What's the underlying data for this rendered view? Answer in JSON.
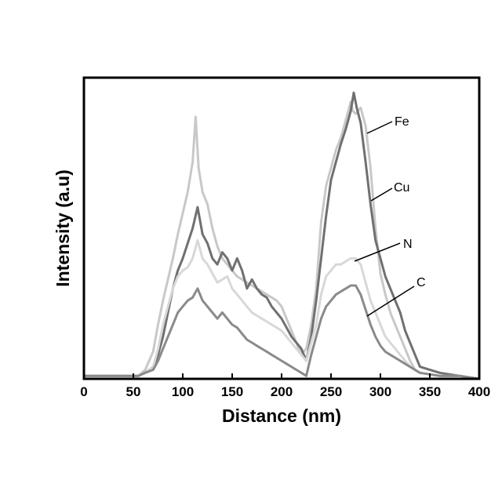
{
  "chart_data": {
    "type": "line",
    "title": "",
    "xlabel": "Distance (nm)",
    "ylabel": "Intensity (a.u)",
    "xlim": [
      0,
      400
    ],
    "ylim": [
      0,
      100
    ],
    "xticks": [
      0,
      50,
      100,
      150,
      200,
      250,
      300,
      350,
      400
    ],
    "grid": false,
    "legend": "none",
    "annotations": [
      "Fe",
      "Cu",
      "N",
      "C"
    ],
    "series": [
      {
        "color": "#c8c8c8",
        "x": [
          0,
          20,
          40,
          55,
          62,
          70,
          75,
          80,
          85,
          90,
          95,
          100,
          105,
          110,
          113,
          116,
          120,
          125,
          130,
          135,
          140,
          145,
          150,
          155,
          160,
          165,
          170,
          175,
          180,
          185,
          190,
          195,
          200,
          205,
          210,
          215,
          220,
          225,
          230,
          235,
          240,
          245,
          250,
          255,
          260,
          265,
          270,
          272,
          275,
          280,
          285,
          290,
          295,
          300,
          305,
          310,
          315,
          320,
          325,
          330,
          335,
          340,
          360,
          380,
          400
        ],
        "y": [
          1,
          1,
          1,
          1,
          3,
          9,
          18,
          26,
          33,
          40,
          48,
          55,
          62,
          72,
          87,
          70,
          62,
          58,
          50,
          44,
          40,
          38,
          36,
          34,
          33,
          32,
          31,
          30,
          29,
          28,
          27,
          26,
          24,
          20,
          16,
          12,
          8,
          10,
          18,
          30,
          52,
          64,
          70,
          76,
          80,
          86,
          92,
          89,
          88,
          90,
          84,
          70,
          50,
          35,
          28,
          22,
          18,
          14,
          10,
          6,
          3,
          2,
          1,
          1,
          0
        ]
      },
      {
        "color": "#707070",
        "x": [
          0,
          20,
          40,
          55,
          62,
          70,
          75,
          80,
          85,
          90,
          95,
          100,
          105,
          110,
          115,
          120,
          125,
          130,
          135,
          140,
          145,
          150,
          155,
          160,
          165,
          170,
          175,
          180,
          185,
          190,
          195,
          200,
          205,
          210,
          215,
          220,
          225,
          230,
          235,
          240,
          245,
          250,
          255,
          260,
          265,
          270,
          273,
          276,
          280,
          285,
          290,
          295,
          300,
          305,
          310,
          315,
          320,
          325,
          330,
          335,
          340,
          360,
          380,
          400
        ],
        "y": [
          1,
          1,
          1,
          1,
          2,
          4,
          8,
          14,
          22,
          30,
          36,
          40,
          45,
          50,
          57,
          48,
          45,
          40,
          38,
          42,
          40,
          36,
          40,
          36,
          30,
          33,
          30,
          28,
          27,
          24,
          22,
          20,
          17,
          14,
          12,
          10,
          6,
          14,
          26,
          40,
          54,
          66,
          72,
          78,
          83,
          89,
          95,
          90,
          85,
          72,
          58,
          46,
          40,
          34,
          30,
          26,
          22,
          16,
          12,
          8,
          4,
          2,
          1,
          0
        ]
      },
      {
        "color": "#d8d8d8",
        "x": [
          0,
          20,
          40,
          55,
          62,
          70,
          75,
          80,
          85,
          90,
          95,
          100,
          105,
          110,
          115,
          120,
          125,
          130,
          135,
          140,
          145,
          150,
          155,
          160,
          165,
          170,
          175,
          180,
          185,
          190,
          195,
          200,
          205,
          210,
          215,
          220,
          225,
          230,
          235,
          240,
          245,
          250,
          255,
          260,
          265,
          270,
          275,
          280,
          285,
          290,
          295,
          300,
          305,
          310,
          315,
          320,
          325,
          330,
          335,
          340,
          360,
          380,
          400
        ],
        "y": [
          1,
          1,
          1,
          1,
          2,
          4,
          10,
          18,
          24,
          30,
          34,
          36,
          37,
          40,
          46,
          40,
          38,
          35,
          32,
          33,
          34,
          30,
          28,
          26,
          24,
          22,
          21,
          20,
          19,
          18,
          17,
          16,
          14,
          12,
          10,
          8,
          6,
          12,
          18,
          28,
          34,
          36,
          38,
          38,
          39,
          40,
          40,
          38,
          32,
          26,
          22,
          18,
          14,
          12,
          10,
          8,
          6,
          4,
          3,
          2,
          1,
          1,
          0
        ]
      },
      {
        "color": "#8a8a8a",
        "x": [
          0,
          20,
          40,
          55,
          62,
          70,
          75,
          80,
          85,
          90,
          95,
          100,
          105,
          110,
          115,
          120,
          125,
          130,
          135,
          140,
          145,
          150,
          155,
          160,
          165,
          170,
          175,
          180,
          185,
          190,
          195,
          200,
          205,
          210,
          215,
          220,
          225,
          230,
          235,
          240,
          245,
          250,
          255,
          260,
          265,
          270,
          275,
          280,
          285,
          290,
          295,
          300,
          305,
          310,
          315,
          320,
          325,
          330,
          335,
          340,
          360,
          380,
          400
        ],
        "y": [
          1,
          1,
          1,
          1,
          2,
          3,
          6,
          10,
          14,
          18,
          22,
          24,
          26,
          27,
          30,
          26,
          24,
          22,
          20,
          22,
          20,
          18,
          17,
          15,
          13,
          12,
          11,
          10,
          9,
          8,
          7,
          6,
          5,
          4,
          3,
          2,
          1,
          8,
          14,
          20,
          24,
          26,
          28,
          29,
          30,
          31,
          31,
          28,
          23,
          18,
          14,
          11,
          9,
          8,
          7,
          6,
          5,
          4,
          3,
          2,
          1,
          1,
          0
        ]
      }
    ]
  }
}
